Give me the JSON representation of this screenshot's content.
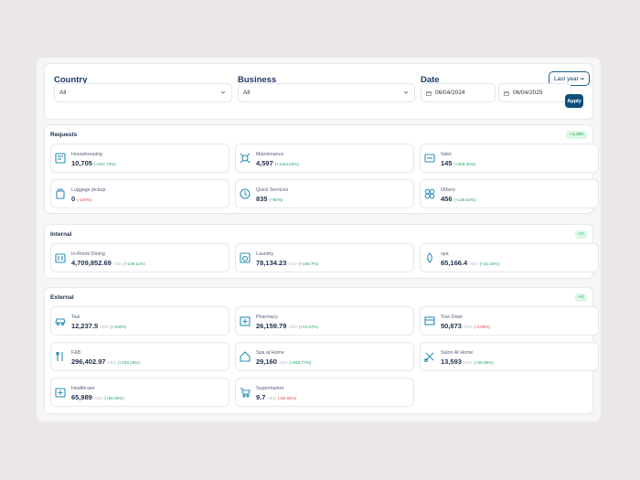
{
  "filters": {
    "country": {
      "label": "Country",
      "value": "All"
    },
    "business": {
      "label": "Business",
      "value": "All"
    },
    "date": {
      "label": "Date",
      "range": "Last year",
      "from": "06/04/2024",
      "to": "06/04/2025",
      "apply": "Apply"
    }
  },
  "colors": {
    "accent": "#0d4f7a",
    "positive": "#21a15d",
    "negative": "#e5404b",
    "icon": "#2a8fb8"
  },
  "sections": {
    "requests": {
      "title": "Requests",
      "badge": "+1,289",
      "tiles": [
        {
          "name": "Housekeeping",
          "value": "10,705",
          "change": "(+947.73%)",
          "trend": "up",
          "icon": "housekeeping-icon"
        },
        {
          "name": "Maintenance",
          "value": "4,597",
          "change": "(+1164.52%)",
          "trend": "up",
          "icon": "maintenance-icon"
        },
        {
          "name": "Valet",
          "value": "145",
          "change": "(+209.36%)",
          "trend": "up",
          "icon": "valet-icon"
        },
        {
          "name": "Luggage pickup",
          "value": "0",
          "change": "(-100%)",
          "trend": "down",
          "icon": "luggage-icon"
        },
        {
          "name": "Quick Services",
          "value": "835",
          "change": "(+90%)",
          "trend": "up",
          "icon": "quick-services-icon"
        },
        {
          "name": "Others",
          "value": "456",
          "change": "(+135.63%)",
          "trend": "up",
          "icon": "others-icon"
        }
      ]
    },
    "internal": {
      "title": "Internal",
      "badge": "+0",
      "tiles": [
        {
          "name": "In-Room Dining",
          "value": "4,709,852.69",
          "currency": "AED",
          "change": "(+138.11%)",
          "trend": "up",
          "icon": "dining-icon"
        },
        {
          "name": "Laundry",
          "value": "78,134.23",
          "currency": "AED",
          "change": "(+158.7%)",
          "trend": "up",
          "icon": "laundry-icon"
        },
        {
          "name": "spa",
          "value": "65,166.4",
          "currency": "AED",
          "change": "(+22.43%)",
          "trend": "up",
          "icon": "spa-icon"
        }
      ]
    },
    "external": {
      "title": "External",
      "badge": "+0",
      "tiles": [
        {
          "name": "Taxi",
          "value": "12,237.5",
          "currency": "AED",
          "change": "(+100%)",
          "trend": "up",
          "icon": "taxi-icon"
        },
        {
          "name": "Pharmacy",
          "value": "26,159.79",
          "currency": "AED",
          "change": "(+43.47%)",
          "trend": "up",
          "icon": "pharmacy-icon"
        },
        {
          "name": "Tour Desk",
          "value": "50,873",
          "currency": "AED",
          "change": "(-3.08%)",
          "trend": "down",
          "icon": "tour-desk-icon"
        },
        {
          "name": "F&B",
          "value": "296,402.97",
          "currency": "AED",
          "change": "(+233.18%)",
          "trend": "up",
          "icon": "fnb-icon"
        },
        {
          "name": "Spa at Home",
          "value": "29,160",
          "currency": "AED",
          "change": "(+545.77%)",
          "trend": "up",
          "icon": "spa-home-icon"
        },
        {
          "name": "Salon At Home",
          "value": "13,593",
          "currency": "AED",
          "change": "(+36.89%)",
          "trend": "up",
          "icon": "salon-icon"
        },
        {
          "name": "Healthcare",
          "value": "65,989",
          "currency": "AED",
          "change": "(+54.05%)",
          "trend": "up",
          "icon": "healthcare-icon"
        },
        {
          "name": "Supermarket",
          "value": "9.7",
          "currency": "AED",
          "change": "(-56.92%)",
          "trend": "down",
          "icon": "supermarket-icon"
        }
      ]
    }
  }
}
